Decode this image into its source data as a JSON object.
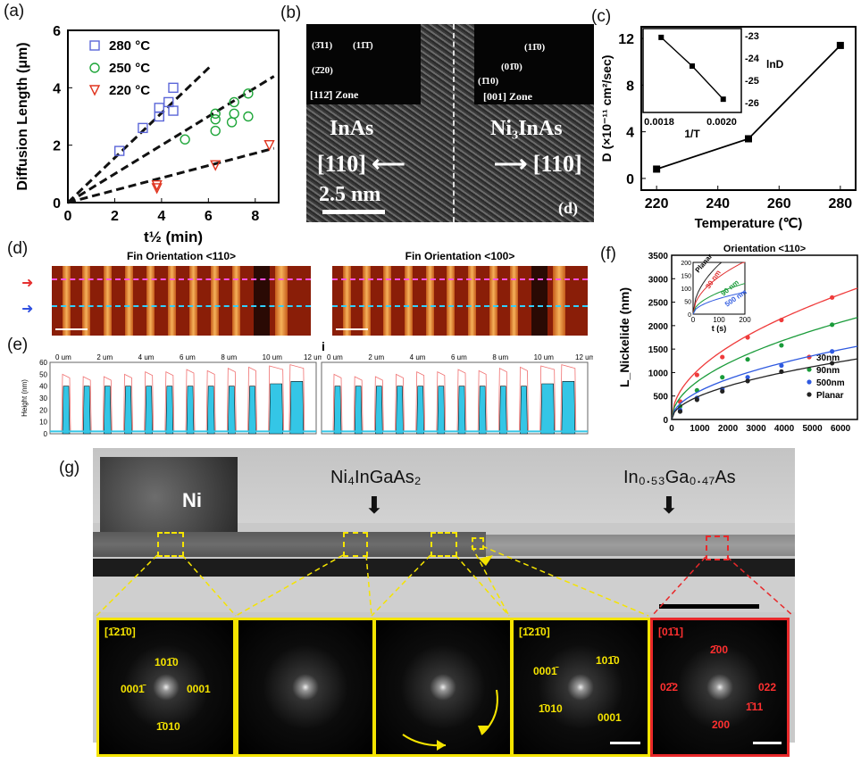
{
  "panel_labels": {
    "a": "(a)",
    "b": "(b)",
    "c": "(c)",
    "d": "(d)",
    "e": "(e)",
    "f": "(f)",
    "g": "(g)",
    "i": "i"
  },
  "chart_data": [
    {
      "id": "a",
      "type": "scatter",
      "xlabel": "t^{1/2} (min)",
      "ylabel": "Diffusion Length (μm)",
      "xlim": [
        0,
        9
      ],
      "ylim": [
        0,
        6
      ],
      "xticks": [
        0,
        2,
        4,
        6,
        8
      ],
      "yticks": [
        0,
        2,
        4,
        6
      ],
      "series": [
        {
          "name": "280 °C",
          "marker": "square",
          "color": "#5b66d8",
          "x": [
            2.2,
            3.2,
            3.9,
            3.9,
            4.3,
            4.5,
            4.5
          ],
          "y": [
            1.8,
            2.6,
            3.0,
            3.3,
            3.5,
            3.2,
            4.0
          ],
          "fit_slope": 0.78
        },
        {
          "name": "250 °C",
          "marker": "circle",
          "color": "#1fa63a",
          "x": [
            5.0,
            6.3,
            6.3,
            6.3,
            7.0,
            7.1,
            7.1,
            7.7,
            7.7
          ],
          "y": [
            2.2,
            2.5,
            2.9,
            3.1,
            2.8,
            3.1,
            3.5,
            3.0,
            3.8
          ],
          "fit_slope": 0.5
        },
        {
          "name": "220 °C",
          "marker": "triangle-down",
          "color": "#e0341e",
          "x": [
            3.8,
            3.8,
            6.3,
            8.6
          ],
          "y": [
            0.5,
            0.6,
            1.3,
            2.0
          ],
          "fit_slope": 0.215
        }
      ]
    },
    {
      "id": "c",
      "type": "line",
      "xlabel": "Temperature (℃)",
      "ylabel": "D (×10⁻¹¹ cm²/sec)",
      "xlim": [
        215,
        285
      ],
      "ylim": [
        -1,
        13
      ],
      "xticks": [
        220,
        240,
        260,
        280
      ],
      "yticks": [
        0,
        4,
        8,
        12
      ],
      "x": [
        220,
        250,
        280
      ],
      "y": [
        0.8,
        3.4,
        11.4
      ],
      "inset": {
        "xlabel": "1/T",
        "ylabel": "lnD",
        "xticks": [
          "0.0018",
          "0.0020"
        ],
        "yticks": [
          "-23",
          "-24",
          "-25",
          "-26"
        ],
        "x": [
          0.00179,
          0.00191,
          0.00203
        ],
        "y": [
          -22.8,
          -24.1,
          -25.6
        ]
      }
    },
    {
      "id": "f",
      "type": "scatter",
      "title": "Orientation <110>",
      "xlabel": "t (s)",
      "ylabel": "L_Nickelide (nm)",
      "xlim": [
        0,
        6600
      ],
      "ylim": [
        0,
        3500
      ],
      "xticks": [
        0,
        1000,
        2000,
        3000,
        4000,
        5000,
        6000
      ],
      "yticks": [
        0,
        500,
        1000,
        1500,
        2000,
        2500,
        3000,
        3500
      ],
      "series": [
        {
          "name": "30nm",
          "color": "#ef3b3b",
          "x": [
            300,
            900,
            1800,
            2700,
            3900,
            5700
          ],
          "y": [
            380,
            950,
            1330,
            1750,
            2120,
            2600
          ]
        },
        {
          "name": "90nm",
          "color": "#1a9b3a",
          "x": [
            300,
            900,
            1800,
            2700,
            3900,
            5700
          ],
          "y": [
            280,
            620,
            900,
            1280,
            1580,
            2020
          ]
        },
        {
          "name": "500nm",
          "color": "#2f5ae0",
          "x": [
            300,
            900,
            1800,
            2700,
            3900,
            5700
          ],
          "y": [
            200,
            460,
            650,
            900,
            1150,
            1450
          ]
        },
        {
          "name": "Planar",
          "color": "#222222",
          "x": [
            300,
            900,
            1800,
            2700,
            3900,
            5700
          ],
          "y": [
            170,
            420,
            600,
            820,
            1020,
            1200
          ]
        }
      ],
      "inset": {
        "labels": [
          "Planar",
          "30 nm",
          "90 nm",
          "500 nm"
        ],
        "xlabel": "t (s)",
        "xticks": [
          "0",
          "100",
          "200"
        ],
        "yticks": [
          "0",
          "50",
          "100",
          "150",
          "200"
        ]
      }
    },
    {
      "id": "e",
      "type": "area",
      "xlabel": "",
      "ylabel": "Height (nm)",
      "xticks": [
        "0 um",
        "2 um",
        "4 um",
        "6 um",
        "8 um",
        "10 um",
        "12 um"
      ],
      "yticks": [
        0,
        10,
        20,
        30,
        40,
        50,
        60
      ],
      "peaks_red": [
        50,
        48,
        48,
        50,
        52,
        52,
        54,
        53,
        55,
        56,
        57,
        58
      ],
      "peaks_blue": [
        40,
        40,
        40,
        40,
        40,
        40,
        40,
        40,
        40,
        40,
        42,
        44
      ]
    }
  ],
  "tem_b": {
    "left_material": "InAs",
    "right_material": "Ni₃InAs",
    "left_dir": "[110] ⟵",
    "right_dir": "⟶ [110]",
    "scale": "2.5 nm",
    "panel_tag": "(d)",
    "fft_left": {
      "spots": [
        "(3̄11)",
        "(11̄1̄)",
        "(2̄20)"
      ],
      "zone": "[112̄] Zone"
    },
    "fft_right": {
      "spots": [
        "(11̄0)",
        "(01̄0)",
        "(1̄10)"
      ],
      "zone": "[001] Zone"
    }
  },
  "fin_d": {
    "left_title": "Fin Orientation <110>",
    "right_title": "Fin Orientation <100>"
  },
  "tem_g": {
    "ni_label": "Ni",
    "mid_label": "Ni₄InGaAs₂",
    "right_label": "In₀.₅₃Ga₀.₄₇As",
    "fft1": {
      "zone": "[1̄21̄0]",
      "spots": [
        "101̄0",
        "0001̄",
        "0001",
        "1̄010"
      ]
    },
    "fft4": {
      "zone": "[1̄21̄0]",
      "spots": [
        "0001̄",
        "101̄0",
        "1̄010",
        "0001"
      ]
    },
    "fft5": {
      "zone": "[01̄1]",
      "spots": [
        "2̄00",
        "02̄2",
        "022",
        "1̄11",
        "200"
      ]
    }
  },
  "colors": {
    "yellow": "#f5e400",
    "red": "#e8282a",
    "fin": "#f39a3a",
    "fill": "#34c6e6"
  }
}
